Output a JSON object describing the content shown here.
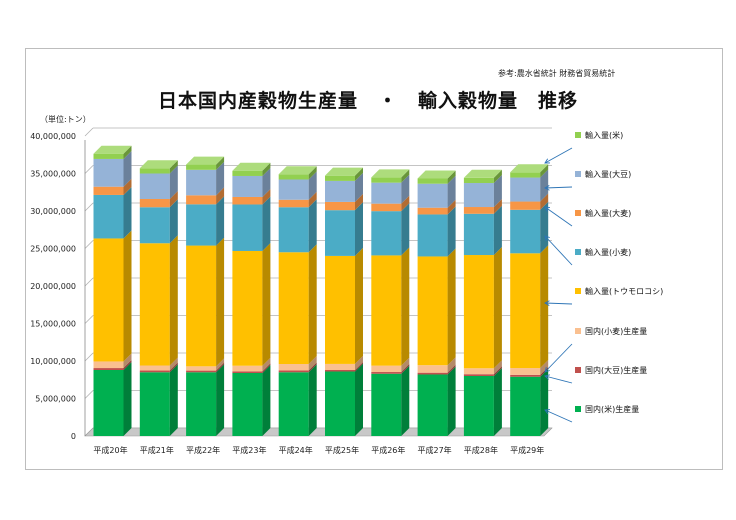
{
  "source_note": "参考:農水省統計 財務省貿易統計",
  "title": "日本国内産穀物生産量　・　輸入穀物量　推移",
  "unit_label": "（単位:トン）",
  "chart_data": {
    "type": "bar",
    "stacked": true,
    "three_d": true,
    "title": "日本国内産穀物生産量　・　輸入穀物量　推移",
    "ylabel": "（単位:トン）",
    "ylim": [
      0,
      40000000
    ],
    "y_ticks": [
      "0",
      "5,000,000",
      "10,000,000",
      "15,000,000",
      "20,000,000",
      "25,000,000",
      "30,000,000",
      "35,000,000",
      "40,000,000"
    ],
    "grid": true,
    "legend_position": "right",
    "categories": [
      "平成20年",
      "平成21年",
      "平成22年",
      "平成23年",
      "平成24年",
      "平成25年",
      "平成26年",
      "平成27年",
      "平成28年",
      "平成29年"
    ],
    "series": [
      {
        "name": "国内(米)生産量",
        "color": "#00b050",
        "values": [
          8800000,
          8500000,
          8500000,
          8400000,
          8500000,
          8600000,
          8300000,
          8200000,
          8000000,
          7900000
        ]
      },
      {
        "name": "国内(大豆)生産量",
        "color": "#c0504d",
        "values": [
          260000,
          230000,
          220000,
          220000,
          240000,
          200000,
          230000,
          240000,
          240000,
          250000
        ]
      },
      {
        "name": "国内(小麦)生産量",
        "color": "#fac090",
        "values": [
          880000,
          670000,
          570000,
          750000,
          860000,
          810000,
          850000,
          1000000,
          790000,
          910000
        ]
      },
      {
        "name": "輸入量(トウモロコシ)",
        "color": "#ffc000",
        "values": [
          16400000,
          16300000,
          16100000,
          15300000,
          14900000,
          14400000,
          14700000,
          14500000,
          15100000,
          15300000
        ]
      },
      {
        "name": "輸入量(小麦)",
        "color": "#4bacc6",
        "values": [
          5800000,
          4800000,
          5500000,
          6200000,
          6000000,
          6100000,
          5900000,
          5600000,
          5500000,
          5800000
        ]
      },
      {
        "name": "輸入量(大麦)",
        "color": "#f79646",
        "values": [
          1100000,
          1100000,
          1200000,
          1000000,
          1000000,
          1100000,
          1000000,
          900000,
          900000,
          1100000
        ]
      },
      {
        "name": "輸入量(大豆)",
        "color": "#95b3d7",
        "values": [
          3700000,
          3400000,
          3400000,
          2800000,
          2700000,
          2800000,
          2800000,
          3200000,
          3200000,
          3200000
        ]
      },
      {
        "name": "輸入量(米)",
        "color": "#92d050",
        "values": [
          700000,
          700000,
          700000,
          700000,
          700000,
          700000,
          700000,
          700000,
          700000,
          700000
        ]
      }
    ],
    "legend_order": [
      "輸入量(米)",
      "輸入量(大豆)",
      "輸入量(大麦)",
      "輸入量(小麦)",
      "輸入量(トウモロコシ)",
      "国内(小麦)生産量",
      "国内(大豆)生産量",
      "国内(米)生産量"
    ]
  }
}
